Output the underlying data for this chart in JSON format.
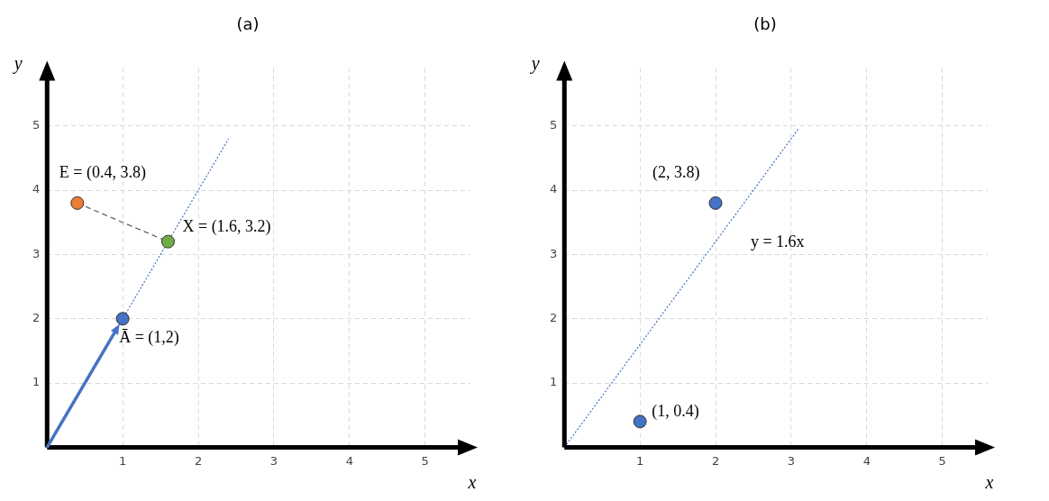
{
  "chart_data": [
    {
      "type": "scatter",
      "title": "(a)",
      "xlabel": "x",
      "ylabel": "y",
      "xlim": [
        0,
        5.6
      ],
      "ylim": [
        0,
        5.9
      ],
      "xticks": [
        1,
        2,
        3,
        4,
        5
      ],
      "yticks": [
        1,
        2,
        3,
        4,
        5
      ],
      "grid": true,
      "legend": false,
      "series": [
        {
          "type": "line",
          "x": [
            0,
            2.4
          ],
          "values": [
            0,
            4.8
          ],
          "color": "#4472c4",
          "line_style": "dotted",
          "marker": "none"
        },
        {
          "type": "line",
          "x": [
            0.4,
            1.6
          ],
          "values": [
            3.8,
            3.2
          ],
          "color": "#595959",
          "line_style": "dashed",
          "marker": "none"
        },
        {
          "type": "scatter",
          "x": [
            0.4,
            1.6,
            1
          ],
          "values": [
            3.8,
            3.2,
            2
          ],
          "colors": [
            "#ed7d31",
            "#70ad47",
            "#4472c4"
          ],
          "marker": "circle"
        }
      ],
      "annotations": [
        {
          "text": "E = (0.4, 3.8)",
          "x": 0.4,
          "y": 3.8
        },
        {
          "text": "X = (1.6, 3.2)",
          "x": 1.6,
          "y": 3.2
        },
        {
          "text": "Ā = (1,2)",
          "x": 1,
          "y": 2
        }
      ]
    },
    {
      "type": "scatter",
      "title": "(b)",
      "xlabel": "x",
      "ylabel": "y",
      "xlim": [
        0,
        5.6
      ],
      "ylim": [
        0,
        5.9
      ],
      "xticks": [
        1,
        2,
        3,
        4,
        5
      ],
      "yticks": [
        1,
        2,
        3,
        4,
        5
      ],
      "grid": true,
      "legend": false,
      "series": [
        {
          "type": "line",
          "x": [
            0,
            3.1
          ],
          "values": [
            0,
            4.96
          ],
          "color": "#4472c4",
          "line_style": "dotted",
          "marker": "none"
        },
        {
          "type": "scatter",
          "x": [
            2,
            1
          ],
          "values": [
            3.8,
            0.4
          ],
          "colors": [
            "#4472c4",
            "#4472c4"
          ],
          "marker": "circle"
        }
      ],
      "annotations": [
        {
          "text": "(2, 3.8)",
          "x": 2,
          "y": 3.8
        },
        {
          "text": "(1, 0.4)",
          "x": 1,
          "y": 0.4
        },
        "y = 1.6x"
      ]
    }
  ]
}
